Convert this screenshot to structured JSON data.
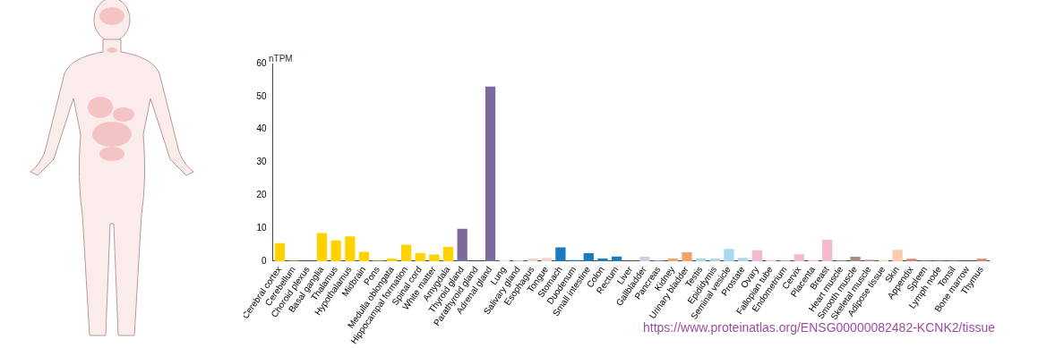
{
  "chart_data": {
    "type": "bar",
    "y_label": "nTPM",
    "annotations": [
      "https://www.proteinatlas.org/ENSG00000082482-KCNK2/tissue"
    ],
    "categories": [
      "Cerebral cortex",
      "Cerebellum",
      "Choroid plexus",
      "Basal ganglia",
      "Thalamus",
      "Hypothalamus",
      "Midbrain",
      "Pons",
      "Medulla oblongata",
      "Hippocampal formation",
      "Spinal cord",
      "White matter",
      "Amygdala",
      "Thyroid gland",
      "Parathyroid gland",
      "Adrenal gland",
      "Lung",
      "Salivary gland",
      "Esophagus",
      "Tongue",
      "Stomach",
      "Duodenum",
      "Small intestine",
      "Colon",
      "Rectum",
      "Liver",
      "Gallbladder",
      "Pancreas",
      "Kidney",
      "Urinary bladder",
      "Testis",
      "Epididymis",
      "Seminal vesicle",
      "Prostate",
      "Ovary",
      "Fallopian tube",
      "Endometrium",
      "Cervix",
      "Placenta",
      "Breast",
      "Heart muscle",
      "Smooth muscle",
      "Skeletal muscle",
      "Adipose tissue",
      "Skin",
      "Appendix",
      "Spleen",
      "Lymph node",
      "Tonsil",
      "Bone marrow",
      "Thymus"
    ],
    "values": [
      5.5,
      0.1,
      0,
      8.5,
      6.3,
      7.5,
      2.8,
      0.1,
      0.8,
      5.0,
      2.4,
      2.0,
      4.3,
      9.8,
      0,
      53,
      0.3,
      0.2,
      0.8,
      1.0,
      4.2,
      0.3,
      2.4,
      0.8,
      1.4,
      0,
      1.3,
      0.1,
      0.8,
      2.7,
      0.8,
      0.8,
      3.7,
      1.0,
      3.3,
      0.3,
      0.2,
      2.1,
      0.3,
      6.5,
      0.2,
      1.3,
      0.4,
      0.3,
      3.4,
      0.7,
      0.1,
      0.1,
      0.1,
      0,
      0.7
    ],
    "colors": [
      "#ffd200",
      "#ffd200",
      "#ffd200",
      "#ffd200",
      "#ffd200",
      "#ffd200",
      "#ffd200",
      "#ffd200",
      "#ffd200",
      "#ffd200",
      "#ffd200",
      "#ffd200",
      "#ffd200",
      "#7d6a9c",
      "#7d6a9c",
      "#7d6a9c",
      "#cfe9ec",
      "#f2d4cf",
      "#f2d4cf",
      "#f2d4cf",
      "#1a7bbf",
      "#1a7bbf",
      "#1a7bbf",
      "#1a7bbf",
      "#1a7bbf",
      "#d3cce3",
      "#d3cce3",
      "#d3cce3",
      "#f6a36b",
      "#f6a36b",
      "#a8d9ef",
      "#a8d9ef",
      "#a8d9ef",
      "#a8d9ef",
      "#f5b9cf",
      "#f5b9cf",
      "#f5b9cf",
      "#f5b9cf",
      "#f5b9cf",
      "#f5b9cf",
      "#a88d7e",
      "#a88d7e",
      "#a88d7e",
      "#fcc9b1",
      "#fcc9b1",
      "#d9826f",
      "#d9826f",
      "#d9826f",
      "#d9826f",
      "#d9826f",
      "#d9826f"
    ],
    "ylim": [
      0,
      60
    ],
    "yticks": [
      0,
      10,
      20,
      30,
      40,
      50,
      60
    ],
    "grid": false
  }
}
